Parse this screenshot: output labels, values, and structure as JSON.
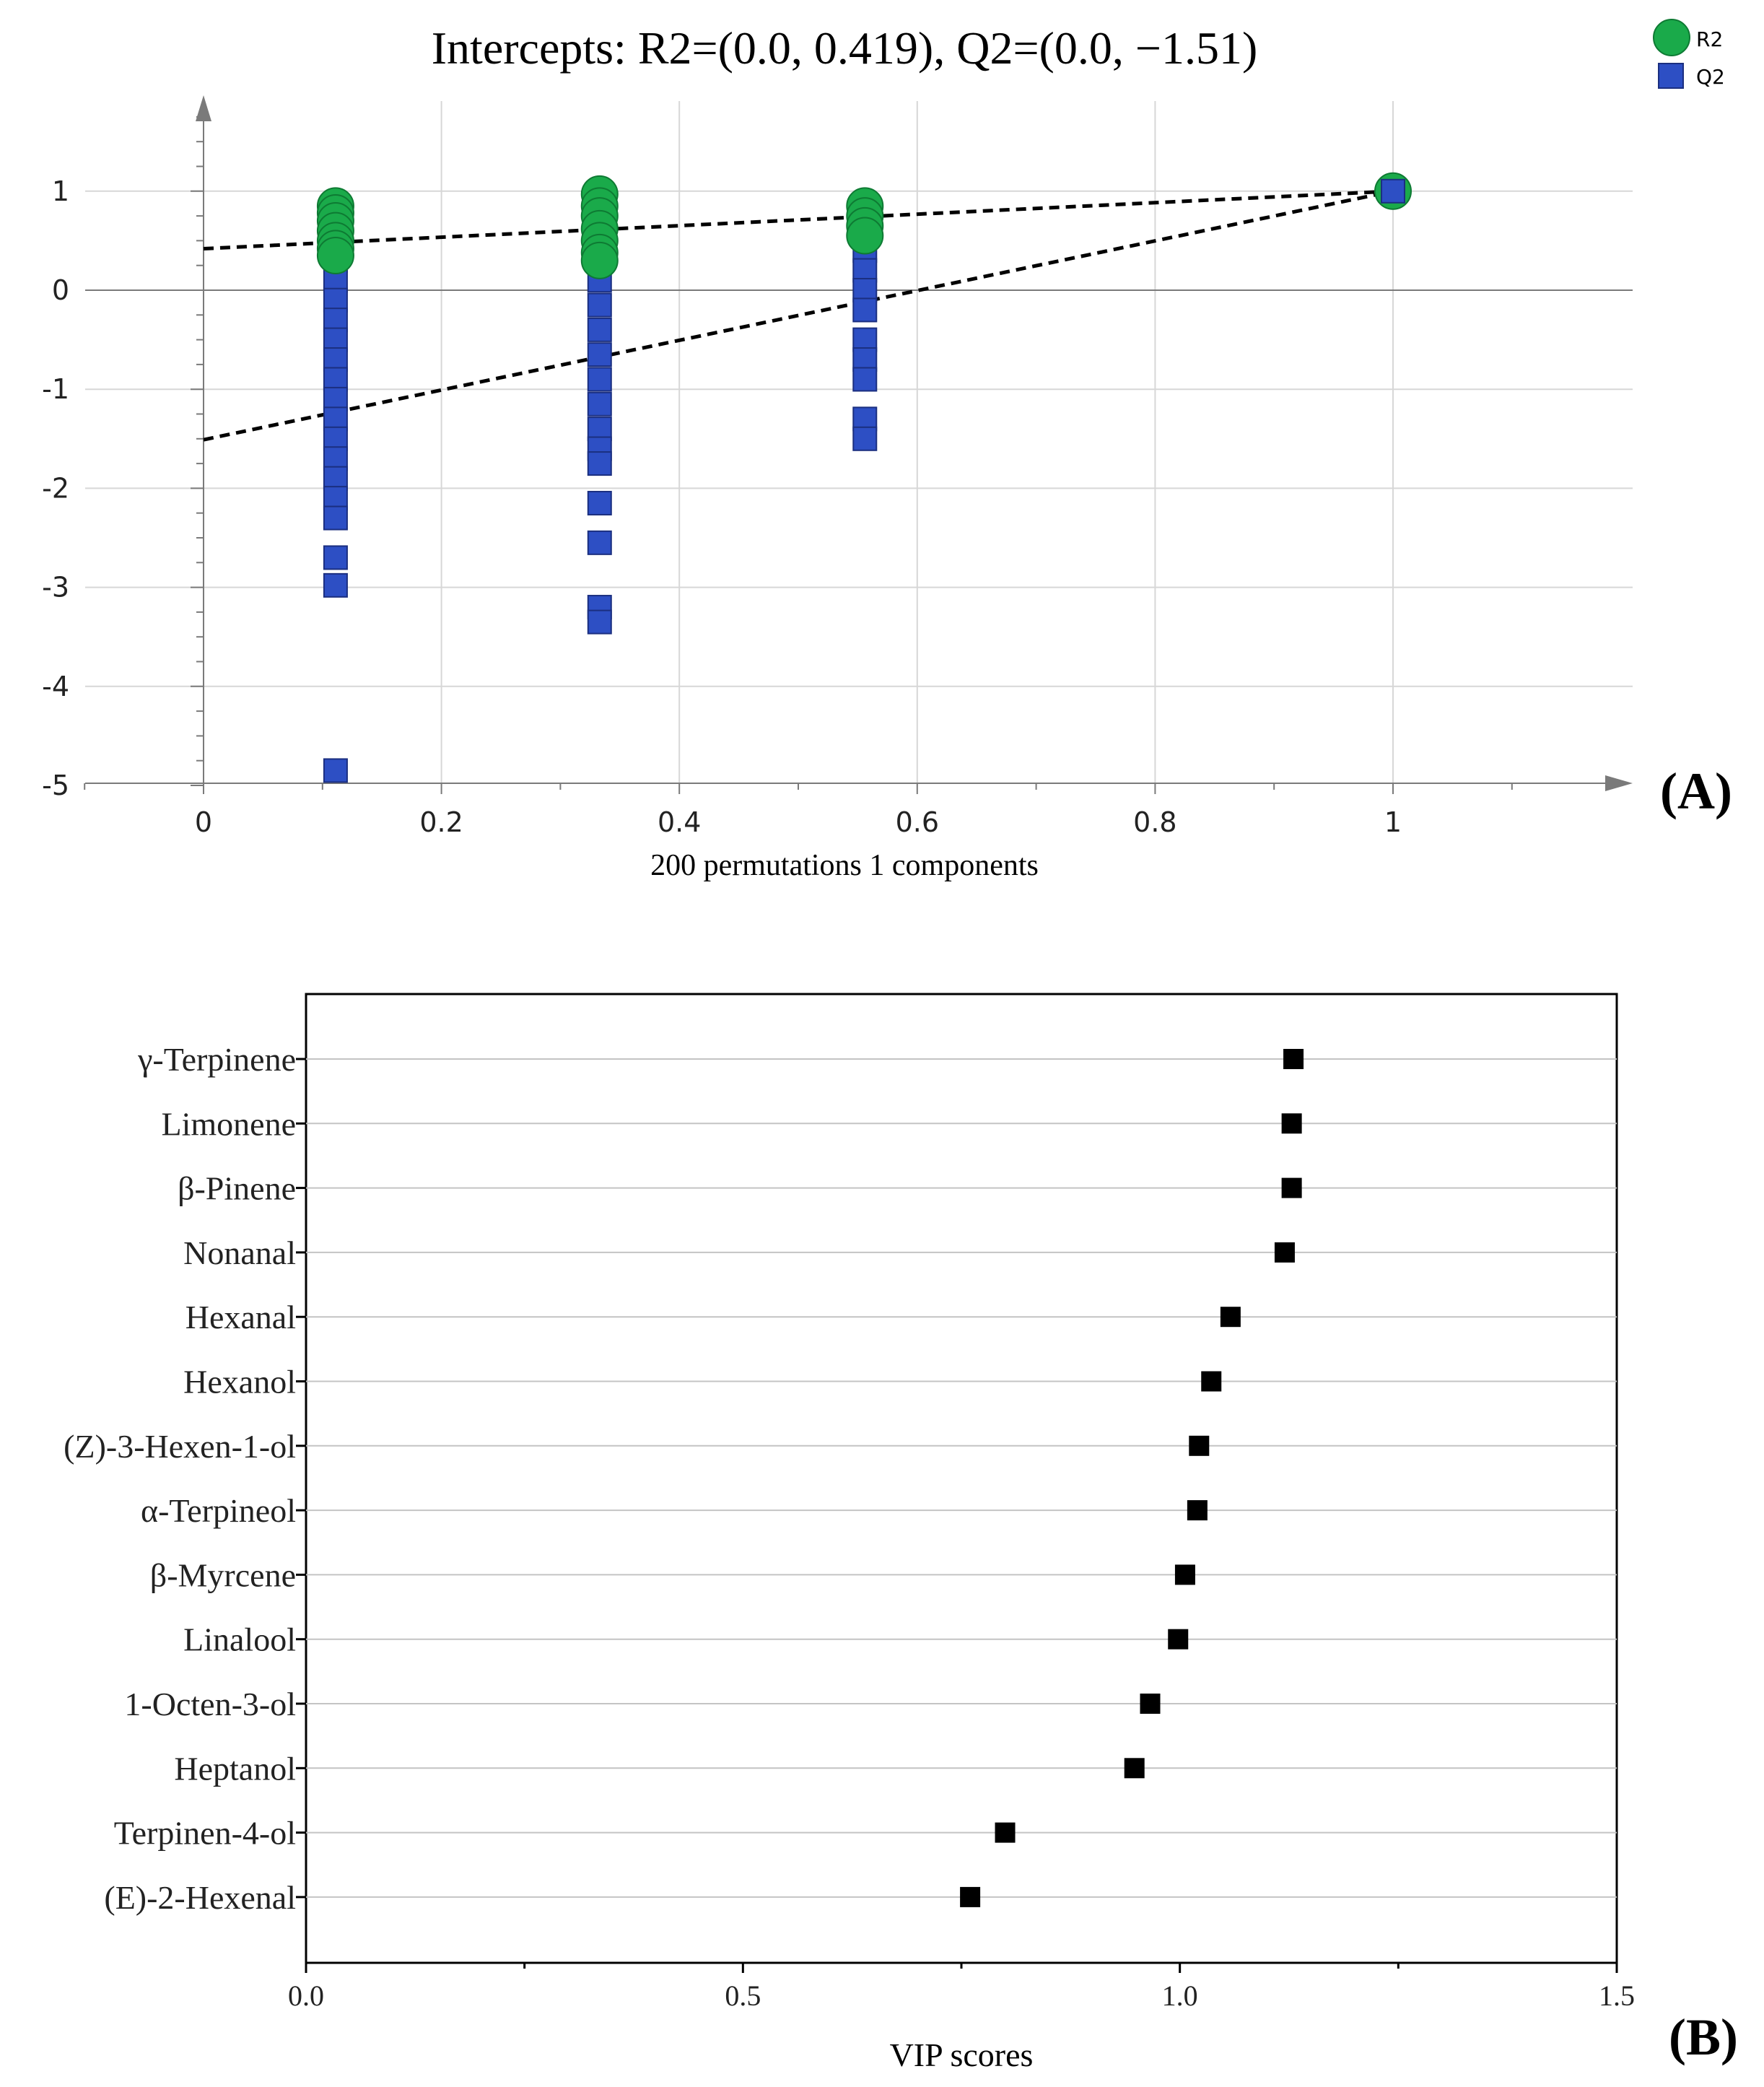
{
  "colors": {
    "r2": "#1aaa4a",
    "q2": "#2d4fc4",
    "vip": "#000000",
    "grid": "#d7d7d7"
  },
  "chart_data": [
    {
      "type": "scatter",
      "title": "Intercepts: R2=(0.0, 0.419), Q2=(0.0, −1.51)",
      "xlabel": "200 permutations 1 components",
      "ylabel": "",
      "panel_label": "(A)",
      "xlim": [
        -0.1,
        1.2
      ],
      "ylim": [
        -5,
        2
      ],
      "x_ticks": [
        "0",
        "0.2",
        "0.4",
        "0.6",
        "0.8",
        "1"
      ],
      "x_tick_values": [
        0,
        0.2,
        0.4,
        0.6,
        0.8,
        1
      ],
      "y_ticks": [
        "1",
        "0",
        "-1",
        "-2",
        "-3",
        "-4",
        "-5"
      ],
      "y_tick_values": [
        1,
        0,
        -1,
        -2,
        -3,
        -4,
        -5
      ],
      "legend": [
        "R2",
        "Q2"
      ],
      "legend_position": "top-right",
      "series": [
        {
          "name": "R2",
          "marker": "circle",
          "points": [
            [
              0.111,
              0.85
            ],
            [
              0.111,
              0.78
            ],
            [
              0.111,
              0.7
            ],
            [
              0.111,
              0.6
            ],
            [
              0.111,
              0.5
            ],
            [
              0.111,
              0.42
            ],
            [
              0.111,
              0.35
            ],
            [
              0.333,
              0.97
            ],
            [
              0.333,
              0.85
            ],
            [
              0.333,
              0.75
            ],
            [
              0.333,
              0.62
            ],
            [
              0.333,
              0.5
            ],
            [
              0.333,
              0.38
            ],
            [
              0.333,
              0.3
            ],
            [
              0.556,
              0.85
            ],
            [
              0.556,
              0.75
            ],
            [
              0.556,
              0.65
            ],
            [
              0.556,
              0.55
            ],
            [
              1,
              1
            ]
          ]
        },
        {
          "name": "Q2",
          "marker": "square",
          "points": [
            [
              0.111,
              0.6
            ],
            [
              0.111,
              0.3
            ],
            [
              0.111,
              0.1
            ],
            [
              0.111,
              -0.1
            ],
            [
              0.111,
              -0.3
            ],
            [
              0.111,
              -0.5
            ],
            [
              0.111,
              -0.7
            ],
            [
              0.111,
              -0.9
            ],
            [
              0.111,
              -1.1
            ],
            [
              0.111,
              -1.3
            ],
            [
              0.111,
              -1.5
            ],
            [
              0.111,
              -1.7
            ],
            [
              0.111,
              -1.9
            ],
            [
              0.111,
              -2.1
            ],
            [
              0.111,
              -2.3
            ],
            [
              0.111,
              -2.7
            ],
            [
              0.111,
              -2.98
            ],
            [
              0.111,
              -4.85
            ],
            [
              0.333,
              0.97
            ],
            [
              0.333,
              0.35
            ],
            [
              0.333,
              0.1
            ],
            [
              0.333,
              -0.15
            ],
            [
              0.333,
              -0.4
            ],
            [
              0.333,
              -0.65
            ],
            [
              0.333,
              -0.9
            ],
            [
              0.333,
              -1.15
            ],
            [
              0.333,
              -1.4
            ],
            [
              0.333,
              -1.6
            ],
            [
              0.333,
              -1.75
            ],
            [
              0.333,
              -2.15
            ],
            [
              0.333,
              -2.55
            ],
            [
              0.333,
              -3.2
            ],
            [
              0.333,
              -3.35
            ],
            [
              0.556,
              0.6
            ],
            [
              0.556,
              0.4
            ],
            [
              0.556,
              0.2
            ],
            [
              0.556,
              0.0
            ],
            [
              0.556,
              -0.2
            ],
            [
              0.556,
              -0.5
            ],
            [
              0.556,
              -0.7
            ],
            [
              0.556,
              -0.9
            ],
            [
              0.556,
              -1.3
            ],
            [
              0.556,
              -1.5
            ],
            [
              1,
              1
            ]
          ]
        }
      ],
      "regression_lines": [
        {
          "name": "R2",
          "from": [
            0,
            0.419
          ],
          "to": [
            1,
            1
          ]
        },
        {
          "name": "Q2",
          "from": [
            0,
            -1.51
          ],
          "to": [
            1,
            1
          ]
        }
      ]
    },
    {
      "type": "scatter",
      "title": "",
      "xlabel": "VIP scores",
      "ylabel": "",
      "panel_label": "(B)",
      "xlim": [
        0,
        1.5
      ],
      "x_ticks": [
        "0.0",
        "0.5",
        "1.0",
        "1.5"
      ],
      "x_tick_values": [
        0,
        0.5,
        1.0,
        1.5
      ],
      "categories": [
        "γ-Terpinene",
        "Limonene",
        "β-Pinene",
        "Nonanal",
        "Hexanal",
        "Hexanol",
        "(Z)-3-Hexen-1-ol",
        "α-Terpineol",
        "β-Myrcene",
        "Linalool",
        "1-Octen-3-ol",
        "Heptanol",
        "Terpinen-4-ol",
        "(E)-2-Hexenal"
      ],
      "values": [
        1.13,
        1.128,
        1.128,
        1.12,
        1.058,
        1.036,
        1.022,
        1.02,
        1.006,
        0.998,
        0.966,
        0.948,
        0.8,
        0.76
      ]
    }
  ]
}
